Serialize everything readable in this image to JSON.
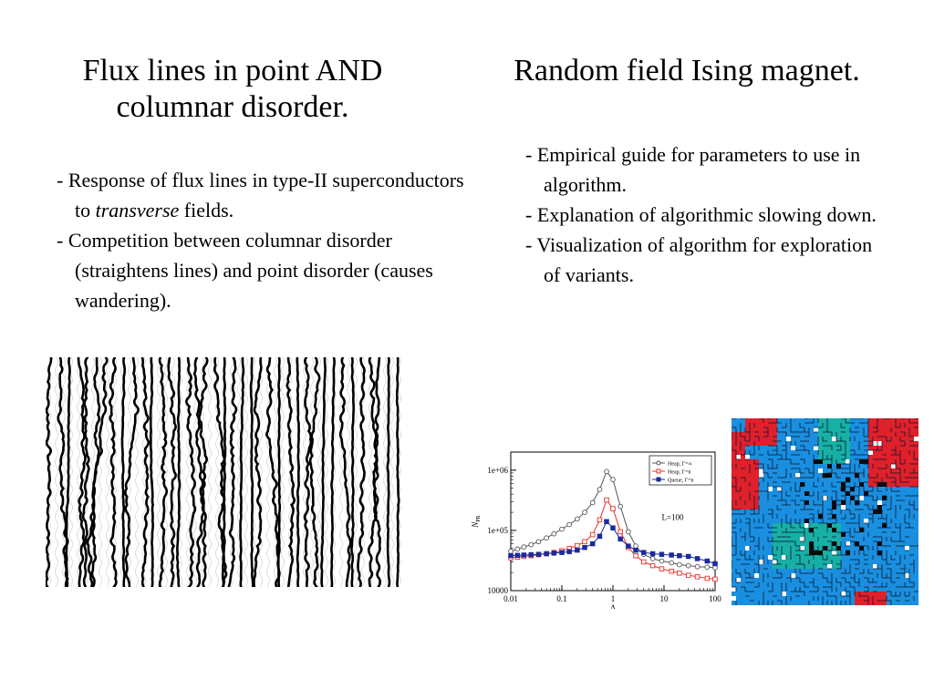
{
  "left": {
    "title_line1": "Flux lines in point AND",
    "title_line2": "columnar disorder.",
    "bullet1_pre": "- Response of flux lines in type-II superconductors to ",
    "bullet1_em": "transverse",
    "bullet1_post": " fields.",
    "bullet2": "- Competition between columnar disorder (straightens lines) and point disorder (causes wandering)."
  },
  "right": {
    "title": "Random field Ising magnet.",
    "bullets": [
      "- Empirical guide for parameters to use in algorithm.",
      "- Explanation of algorithmic slowing down.",
      "- Visualization of algorithm for exploration of variants."
    ]
  },
  "colors": {
    "heap_inf": "#555555",
    "heap_inf_fill": "#ffffff",
    "heap_fin": "#e8302a",
    "queue": "#1c2a9a",
    "ising_blue": "#1a8fe0",
    "ising_teal": "#18b0a6",
    "ising_red": "#e0202a",
    "ising_black": "#0a0a0a"
  },
  "chart_data": {
    "type": "line",
    "x_scale": "log",
    "y_scale": "log",
    "xlim": [
      0.01,
      100
    ],
    "ylim": [
      10000,
      2000000
    ],
    "xticks": [
      "0.01",
      "0.1",
      "1",
      "10",
      "100"
    ],
    "yticks": [
      "10000",
      "1e+05",
      "1e+06"
    ],
    "xlabel": "Δ",
    "ylabel": "N",
    "ylabel_sub": "PR",
    "annotation": "L=100",
    "series": [
      {
        "name": "Heap, Γ=∞",
        "marker": "circle",
        "points": [
          [
            0.01,
            45000
          ],
          [
            0.0135,
            49000
          ],
          [
            0.018,
            53000
          ],
          [
            0.025,
            58000
          ],
          [
            0.035,
            65000
          ],
          [
            0.05,
            75000
          ],
          [
            0.07,
            88000
          ],
          [
            0.1,
            105000
          ],
          [
            0.14,
            125000
          ],
          [
            0.2,
            155000
          ],
          [
            0.28,
            200000
          ],
          [
            0.4,
            290000
          ],
          [
            0.55,
            480000
          ],
          [
            0.75,
            950000
          ],
          [
            1.0,
            700000
          ],
          [
            1.4,
            250000
          ],
          [
            2.0,
            95000
          ],
          [
            2.8,
            55000
          ],
          [
            4,
            40000
          ],
          [
            6,
            34000
          ],
          [
            9,
            31000
          ],
          [
            14,
            29000
          ],
          [
            20,
            27000
          ],
          [
            30,
            26000
          ],
          [
            45,
            25000
          ],
          [
            70,
            24500
          ],
          [
            100,
            24000
          ]
        ]
      },
      {
        "name": "Heap, Γ=n",
        "marker": "square-open",
        "points": [
          [
            0.01,
            35000
          ],
          [
            0.0135,
            36000
          ],
          [
            0.018,
            37000
          ],
          [
            0.025,
            38000
          ],
          [
            0.035,
            39500
          ],
          [
            0.05,
            41000
          ],
          [
            0.07,
            43000
          ],
          [
            0.1,
            46000
          ],
          [
            0.14,
            50000
          ],
          [
            0.2,
            56000
          ],
          [
            0.28,
            65000
          ],
          [
            0.4,
            85000
          ],
          [
            0.55,
            150000
          ],
          [
            0.75,
            320000
          ],
          [
            1.0,
            230000
          ],
          [
            1.4,
            95000
          ],
          [
            2.0,
            52000
          ],
          [
            2.8,
            38000
          ],
          [
            4,
            30000
          ],
          [
            6,
            26000
          ],
          [
            9,
            23000
          ],
          [
            14,
            21000
          ],
          [
            20,
            19500
          ],
          [
            30,
            18000
          ],
          [
            45,
            17000
          ],
          [
            70,
            16000
          ],
          [
            100,
            15500
          ]
        ]
      },
      {
        "name": "Queue, Γ=n",
        "marker": "square-filled",
        "points": [
          [
            0.01,
            38000
          ],
          [
            0.0135,
            38500
          ],
          [
            0.018,
            39000
          ],
          [
            0.025,
            39500
          ],
          [
            0.035,
            40000
          ],
          [
            0.05,
            41000
          ],
          [
            0.07,
            42000
          ],
          [
            0.1,
            43000
          ],
          [
            0.14,
            44500
          ],
          [
            0.2,
            47000
          ],
          [
            0.28,
            52000
          ],
          [
            0.4,
            60000
          ],
          [
            0.55,
            80000
          ],
          [
            0.75,
            140000
          ],
          [
            1.0,
            110000
          ],
          [
            1.4,
            72000
          ],
          [
            2.0,
            55000
          ],
          [
            2.8,
            47000
          ],
          [
            4,
            43000
          ],
          [
            6,
            41000
          ],
          [
            9,
            40000
          ],
          [
            14,
            39000
          ],
          [
            20,
            38000
          ],
          [
            30,
            37000
          ],
          [
            45,
            34000
          ],
          [
            70,
            31000
          ],
          [
            100,
            28000
          ]
        ]
      }
    ]
  }
}
